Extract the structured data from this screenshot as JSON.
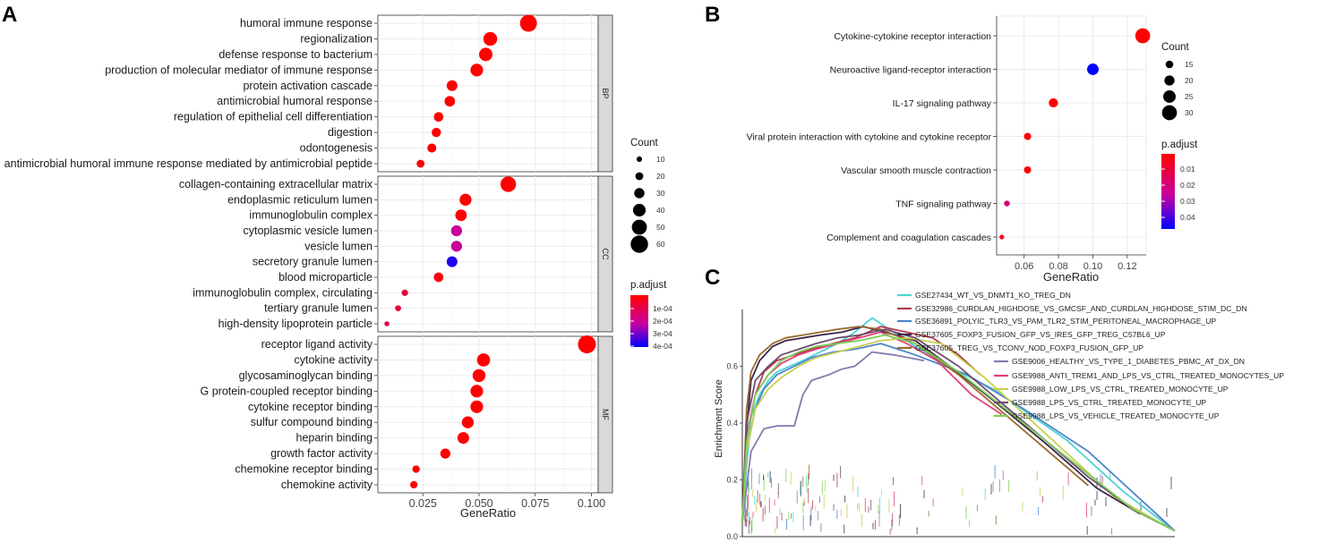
{
  "panels": {
    "A": {
      "letter": "A",
      "xlabel": "GeneRatio",
      "xticks": [
        "0.025",
        "0.050",
        "0.075",
        "0.100"
      ],
      "size_legend": {
        "title": "Count",
        "labels": [
          "10",
          "20",
          "30",
          "40",
          "50",
          "60"
        ]
      },
      "color_legend": {
        "title": "p.adjust",
        "labels": [
          "1e-04",
          "2e-04",
          "3e-04",
          "4e-04"
        ]
      }
    },
    "B": {
      "letter": "B",
      "xlabel": "GeneRatio",
      "xticks": [
        "0.06",
        "0.08",
        "0.10",
        "0.12"
      ],
      "size_legend": {
        "title": "Count",
        "labels": [
          "15",
          "20",
          "25",
          "30"
        ]
      },
      "color_legend": {
        "title": "p.adjust",
        "labels": [
          "0.01",
          "0.02",
          "0.03",
          "0.04"
        ]
      }
    },
    "C": {
      "letter": "C",
      "ylabel": "Enrichment Score",
      "yticks": [
        "0.0",
        "0.2",
        "0.4",
        "0.6"
      ]
    }
  },
  "chart_data": [
    {
      "panel": "A",
      "type": "scatter",
      "title": "",
      "xlabel": "GeneRatio",
      "ylabel": "",
      "xlim": [
        0.005,
        0.103
      ],
      "color_scale": {
        "min": 3e-05,
        "max": 0.00048,
        "low_color": "#ff0000",
        "high_color": "#0000ff"
      },
      "facets": [
        {
          "name": "BP",
          "points": [
            {
              "term": "humoral immune response",
              "x": 0.072,
              "count": 58,
              "padj": 3e-05
            },
            {
              "term": "regionalization",
              "x": 0.055,
              "count": 45,
              "padj": 3e-05
            },
            {
              "term": "defense response to bacterium",
              "x": 0.053,
              "count": 43,
              "padj": 3e-05
            },
            {
              "term": "production of molecular mediator of immune response",
              "x": 0.049,
              "count": 40,
              "padj": 3e-05
            },
            {
              "term": "protein activation cascade",
              "x": 0.038,
              "count": 32,
              "padj": 3e-05
            },
            {
              "term": "antimicrobial humoral response",
              "x": 0.037,
              "count": 31,
              "padj": 3e-05
            },
            {
              "term": "regulation of epithelial cell differentiation",
              "x": 0.032,
              "count": 27,
              "padj": 3e-05
            },
            {
              "term": "digestion",
              "x": 0.031,
              "count": 26,
              "padj": 3e-05
            },
            {
              "term": "odontogenesis",
              "x": 0.029,
              "count": 25,
              "padj": 3e-05
            },
            {
              "term": "antimicrobial humoral immune response mediated by antimicrobial peptide",
              "x": 0.024,
              "count": 20,
              "padj": 3e-05
            }
          ]
        },
        {
          "name": "CC",
          "points": [
            {
              "term": "collagen-containing extracellular matrix",
              "x": 0.063,
              "count": 52,
              "padj": 3e-05
            },
            {
              "term": "endoplasmic reticulum lumen",
              "x": 0.044,
              "count": 37,
              "padj": 3e-05
            },
            {
              "term": "immunoglobulin complex",
              "x": 0.042,
              "count": 35,
              "padj": 4e-05
            },
            {
              "term": "cytoplasmic vesicle lumen",
              "x": 0.04,
              "count": 33,
              "padj": 0.00027
            },
            {
              "term": "vesicle lumen",
              "x": 0.04,
              "count": 33,
              "padj": 0.00027
            },
            {
              "term": "secretory granule lumen",
              "x": 0.038,
              "count": 32,
              "padj": 0.00045
            },
            {
              "term": "blood microparticle",
              "x": 0.032,
              "count": 27,
              "padj": 5e-05
            },
            {
              "term": "immunoglobulin complex, circulating",
              "x": 0.017,
              "count": 14,
              "padj": 0.00012
            },
            {
              "term": "tertiary granule lumen",
              "x": 0.014,
              "count": 12,
              "padj": 0.00012
            },
            {
              "term": "high-density lipoprotein particle",
              "x": 0.009,
              "count": 8,
              "padj": 0.00016
            }
          ]
        },
        {
          "name": "MF",
          "points": [
            {
              "term": "receptor ligand activity",
              "x": 0.098,
              "count": 62,
              "padj": 3e-05
            },
            {
              "term": "cytokine activity",
              "x": 0.052,
              "count": 42,
              "padj": 3e-05
            },
            {
              "term": "glycosaminoglycan binding",
              "x": 0.05,
              "count": 41,
              "padj": 3e-05
            },
            {
              "term": "G protein-coupled receptor binding",
              "x": 0.049,
              "count": 40,
              "padj": 3e-05
            },
            {
              "term": "cytokine receptor binding",
              "x": 0.049,
              "count": 40,
              "padj": 3e-05
            },
            {
              "term": "sulfur compound binding",
              "x": 0.045,
              "count": 37,
              "padj": 3e-05
            },
            {
              "term": "heparin binding",
              "x": 0.043,
              "count": 36,
              "padj": 3e-05
            },
            {
              "term": "growth factor activity",
              "x": 0.035,
              "count": 29,
              "padj": 3e-05
            },
            {
              "term": "chemokine receptor binding",
              "x": 0.022,
              "count": 18,
              "padj": 3e-05
            },
            {
              "term": "chemokine activity",
              "x": 0.021,
              "count": 18,
              "padj": 3e-05
            }
          ]
        }
      ]
    },
    {
      "panel": "B",
      "type": "scatter",
      "title": "",
      "xlabel": "GeneRatio",
      "ylabel": "",
      "xlim": [
        0.044,
        0.131
      ],
      "color_scale": {
        "min": 0.003,
        "max": 0.046,
        "low_color": "#ff0000",
        "high_color": "#0000ff"
      },
      "points": [
        {
          "term": "Cytokine-cytokine receptor interaction",
          "x": 0.129,
          "count": 30,
          "padj": 0.003
        },
        {
          "term": "Neuroactive ligand-receptor interaction",
          "x": 0.1,
          "count": 23,
          "padj": 0.046
        },
        {
          "term": "IL-17 signaling pathway",
          "x": 0.077,
          "count": 18,
          "padj": 0.003
        },
        {
          "term": "Viral protein interaction with cytokine and cytokine receptor",
          "x": 0.062,
          "count": 14,
          "padj": 0.004
        },
        {
          "term": "Vascular smooth muscle contraction",
          "x": 0.062,
          "count": 14,
          "padj": 0.004
        },
        {
          "term": "TNF signaling pathway",
          "x": 0.05,
          "count": 11,
          "padj": 0.02
        },
        {
          "term": "Complement and coagulation cascades",
          "x": 0.047,
          "count": 9,
          "padj": 0.008
        }
      ]
    },
    {
      "panel": "C",
      "type": "line",
      "title": "",
      "xlabel": "",
      "ylabel": "Enrichment Score",
      "xlim": [
        0,
        100
      ],
      "ylim": [
        0,
        0.8
      ],
      "series": [
        {
          "name": "GSE27434_WT_VS_DNMT1_KO_TREG_DN",
          "color": "#4fd3d3",
          "x": [
            0,
            1,
            2,
            4,
            6,
            8,
            11,
            14,
            18,
            22,
            26,
            30,
            35,
            45,
            58,
            75,
            88,
            100
          ],
          "y": [
            0.05,
            0.25,
            0.42,
            0.5,
            0.55,
            0.58,
            0.6,
            0.62,
            0.65,
            0.68,
            0.72,
            0.77,
            0.72,
            0.62,
            0.52,
            0.34,
            0.16,
            0.02
          ]
        },
        {
          "name": "GSE32986_CURDLAN_HIGHDOSE_VS_GMCSF_AND_CURDLAN_HIGHDOSE_STIM_DC_DN",
          "color": "#b2384f",
          "x": [
            0,
            1,
            3,
            5,
            8,
            12,
            16,
            21,
            26,
            32,
            38,
            44,
            50,
            55
          ],
          "y": [
            0.05,
            0.35,
            0.5,
            0.58,
            0.62,
            0.64,
            0.66,
            0.68,
            0.7,
            0.74,
            0.72,
            0.7,
            0.64,
            0.57
          ]
        },
        {
          "name": "GSE36891_POLYIC_TLR3_VS_PAM_TLR2_STIM_PERITONEAL_MACROPHAGE_UP",
          "color": "#4d85c9",
          "x": [
            0,
            1,
            3,
            5,
            8,
            12,
            16,
            21,
            26,
            32,
            40,
            52,
            65,
            80,
            100
          ],
          "y": [
            0.05,
            0.3,
            0.45,
            0.52,
            0.57,
            0.6,
            0.63,
            0.65,
            0.66,
            0.68,
            0.64,
            0.57,
            0.45,
            0.3,
            0.02
          ]
        },
        {
          "name": "GSE37605_FOXP3_FUSION_GFP_VS_IRES_GFP_TREG_C57BL6_UP",
          "color": "#3b2547",
          "x": [
            0,
            1,
            2,
            4,
            7,
            10,
            14,
            18,
            23,
            28,
            33,
            40,
            48,
            58,
            70,
            82,
            92
          ],
          "y": [
            0.05,
            0.38,
            0.55,
            0.62,
            0.67,
            0.69,
            0.7,
            0.71,
            0.72,
            0.74,
            0.72,
            0.69,
            0.6,
            0.48,
            0.33,
            0.17,
            0.08
          ]
        },
        {
          "name": "GSE37605_TREG_VS_TCONV_NOD_FOXP3_FUSION_GFP_UP",
          "color": "#9a6a30",
          "x": [
            0,
            1,
            2,
            4,
            7,
            10,
            14,
            18,
            22,
            27,
            32,
            40,
            50,
            60,
            70,
            80
          ],
          "y": [
            0.05,
            0.45,
            0.58,
            0.64,
            0.68,
            0.7,
            0.71,
            0.72,
            0.73,
            0.74,
            0.73,
            0.68,
            0.57,
            0.44,
            0.31,
            0.18
          ]
        },
        {
          "name": "GSE9006_HEALTHY_VS_TYPE_1_DIABETES_PBMC_AT_DX_DN",
          "color": "#8a78b0",
          "x": [
            0,
            2,
            5,
            8,
            10,
            12,
            14,
            16,
            20,
            23,
            26,
            30,
            35,
            42
          ],
          "y": [
            0.05,
            0.3,
            0.38,
            0.39,
            0.39,
            0.39,
            0.5,
            0.55,
            0.57,
            0.59,
            0.6,
            0.65,
            0.64,
            0.62
          ]
        },
        {
          "name": "GSE9988_ANTI_TREM1_AND_LPS_VS_CTRL_TREATED_MONOCYTES_UP",
          "color": "#e2447c",
          "x": [
            0,
            1,
            3,
            6,
            9,
            13,
            17,
            22,
            27,
            32,
            38,
            45,
            53,
            60
          ],
          "y": [
            0.05,
            0.35,
            0.5,
            0.57,
            0.61,
            0.64,
            0.66,
            0.68,
            0.7,
            0.72,
            0.68,
            0.62,
            0.5,
            0.43
          ]
        },
        {
          "name": "GSE9988_LOW_LPS_VS_CTRL_TREATED_MONOCYTE_UP",
          "color": "#c7d051",
          "x": [
            0,
            1,
            3,
            6,
            9,
            13,
            17,
            22,
            27,
            32,
            38,
            46,
            56,
            66,
            76,
            86,
            100
          ],
          "y": [
            0.05,
            0.3,
            0.45,
            0.52,
            0.56,
            0.6,
            0.63,
            0.65,
            0.67,
            0.69,
            0.7,
            0.68,
            0.56,
            0.42,
            0.28,
            0.14,
            0.02
          ]
        },
        {
          "name": "GSE9988_LPS_VS_CTRL_TREATED_MONOCYTE_UP",
          "color": "#6f4d6e",
          "x": [
            0,
            1,
            3,
            6,
            9,
            13,
            17,
            22,
            27,
            33,
            40,
            50,
            60,
            70,
            80,
            91,
            100
          ],
          "y": [
            0.05,
            0.4,
            0.55,
            0.6,
            0.64,
            0.66,
            0.68,
            0.7,
            0.71,
            0.73,
            0.7,
            0.6,
            0.47,
            0.34,
            0.21,
            0.09,
            0.02
          ]
        },
        {
          "name": "GSE9988_LPS_VS_VEHICLE_TREATED_MONOCYTE_UP",
          "color": "#7ccd5a",
          "x": [
            0,
            1,
            3,
            6,
            9,
            13,
            17,
            22,
            27,
            33,
            40,
            50,
            60,
            70,
            80,
            90,
            100
          ],
          "y": [
            0.05,
            0.33,
            0.5,
            0.57,
            0.62,
            0.65,
            0.67,
            0.68,
            0.69,
            0.71,
            0.68,
            0.58,
            0.46,
            0.34,
            0.22,
            0.1,
            0.02
          ]
        }
      ]
    }
  ]
}
